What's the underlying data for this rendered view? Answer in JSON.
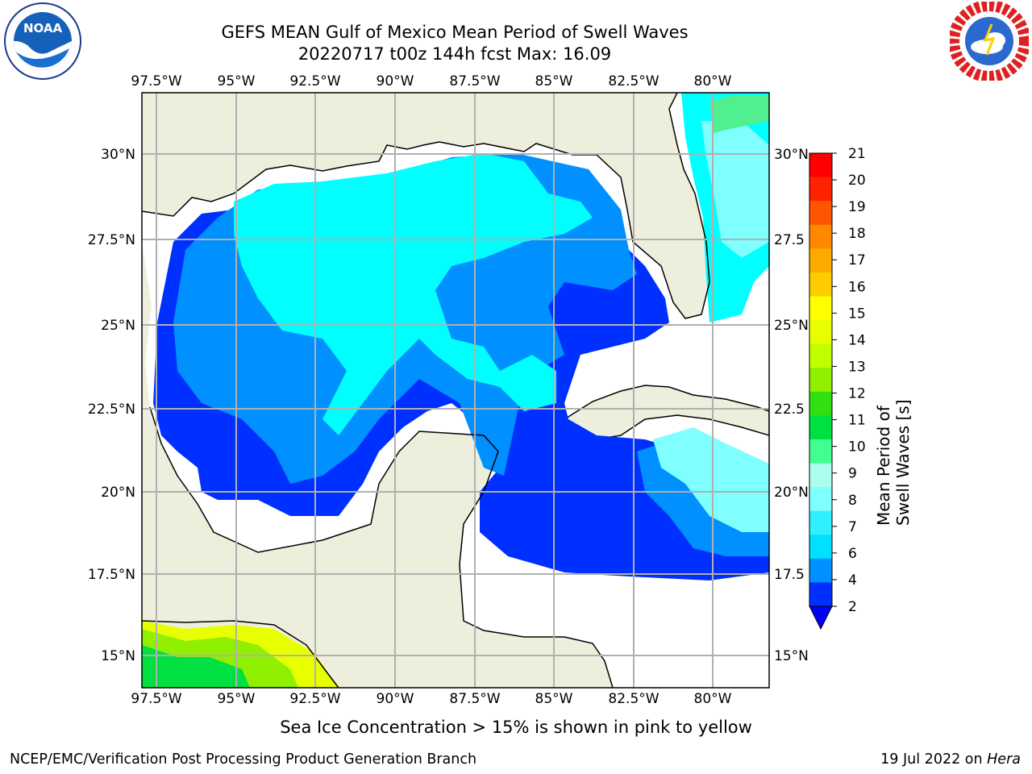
{
  "header": {
    "title_line1": "GEFS MEAN Gulf of Mexico Mean Period of Swell Waves",
    "title_line2": "20220717 t00z 144h fcst   Max: 16.09"
  },
  "logos": {
    "left": {
      "name": "NOAA",
      "text": "NOAA"
    },
    "right": {
      "name": "National Weather Service"
    }
  },
  "map": {
    "lon_ticks": [
      "97.5°W",
      "95°W",
      "92.5°W",
      "90°W",
      "87.5°W",
      "85°W",
      "82.5°W",
      "80°W"
    ],
    "lat_ticks_left": [
      "30°N",
      "27.5°N",
      "25°N",
      "22.5°N",
      "20°N",
      "17.5°N",
      "15°N"
    ],
    "lat_ticks_right": [
      "30°N",
      "27.5",
      "25°N",
      "22.5",
      "20°N",
      "17.5",
      "15°N"
    ],
    "colors": {
      "land": "#eeeedd",
      "ocean_missing": "#ffffff",
      "grid": "#b0b0b0"
    }
  },
  "colorbar": {
    "label": "Mean Period of Swell Waves [s]",
    "ticks": [
      "2",
      "4",
      "6",
      "7",
      "8",
      "9",
      "10",
      "11",
      "12",
      "13",
      "14",
      "15",
      "16",
      "17",
      "18",
      "19",
      "20",
      "21"
    ],
    "colors": [
      "#0030ff",
      "#0090ff",
      "#00e0ff",
      "#30f0ff",
      "#80ffff",
      "#aaffee",
      "#40ff90",
      "#00e040",
      "#30e010",
      "#90f000",
      "#c0ff00",
      "#e8ff00",
      "#ffff00",
      "#ffcc00",
      "#ffaa00",
      "#ff8800",
      "#ff5500",
      "#ff2200",
      "#ff0000"
    ]
  },
  "caption": "Sea Ice Concentration > 15% is shown in pink to yellow",
  "footer": {
    "left": "NCEP/EMC/Verification Post Processing Product Generation Branch",
    "right_date": "19 Jul 2022 on ",
    "right_host": "Hera"
  }
}
